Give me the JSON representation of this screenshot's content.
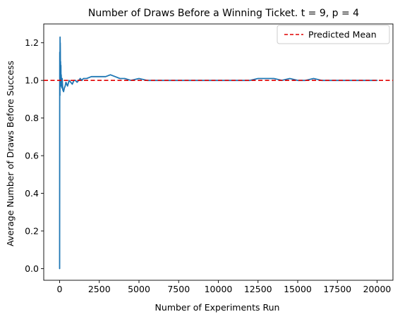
{
  "chart_data": {
    "type": "line",
    "title": "Number of Draws Before a Winning Ticket. t = 9, p = 4",
    "xlabel": "Number of Experiments Run",
    "ylabel": "Average Number of Draws Before Success",
    "xlim": [
      -1000,
      21000
    ],
    "ylim": [
      -0.062,
      1.3
    ],
    "x_ticks": [
      0,
      2500,
      5000,
      7500,
      10000,
      12500,
      15000,
      17500,
      20000
    ],
    "x_tick_labels": [
      "0",
      "2500",
      "5000",
      "7500",
      "10000",
      "12500",
      "15000",
      "17500",
      "20000"
    ],
    "y_ticks": [
      0.0,
      0.2,
      0.4,
      0.6,
      0.8,
      1.0,
      1.2
    ],
    "y_tick_labels": [
      "0.0",
      "0.2",
      "0.4",
      "0.6",
      "0.8",
      "1.0",
      "1.2"
    ],
    "grid": false,
    "legend_position": "top-right",
    "reference_lines": [
      {
        "name": "Predicted Mean",
        "y": 1.0,
        "style": "dashed",
        "color": "#e00000"
      }
    ],
    "series": [
      {
        "color": "#1f77b4",
        "x": [
          1,
          5,
          10,
          15,
          20,
          25,
          30,
          35,
          40,
          45,
          50,
          60,
          70,
          80,
          90,
          100,
          120,
          140,
          160,
          180,
          200,
          250,
          300,
          350,
          400,
          500,
          600,
          700,
          800,
          900,
          1000,
          1100,
          1200,
          1300,
          1400,
          1500,
          1700,
          2000,
          2300,
          2600,
          2900,
          3200,
          3500,
          3800,
          4100,
          4500,
          5000,
          5500,
          6000,
          6500,
          7000,
          7500,
          8000,
          8500,
          9000,
          9500,
          10000,
          10500,
          11000,
          11500,
          12000,
          12500,
          13000,
          13500,
          14000,
          14500,
          15000,
          15500,
          16000,
          16500,
          17000,
          17500,
          18000,
          18500,
          19000,
          19500,
          20000
        ],
        "values": [
          0.0,
          0.82,
          1.15,
          1.0,
          0.92,
          1.1,
          1.23,
          1.1,
          1.2,
          1.15,
          1.05,
          1.1,
          0.98,
          1.08,
          0.97,
          1.03,
          0.99,
          0.96,
          1.01,
          0.98,
          0.95,
          0.94,
          0.96,
          0.97,
          0.99,
          0.97,
          1.0,
          0.99,
          0.98,
          1.0,
          1.0,
          0.99,
          1.0,
          1.01,
          1.0,
          1.01,
          1.01,
          1.02,
          1.02,
          1.02,
          1.02,
          1.03,
          1.02,
          1.01,
          1.01,
          1.0,
          1.01,
          1.0,
          1.0,
          1.0,
          1.0,
          1.0,
          1.0,
          1.0,
          1.0,
          1.0,
          1.0,
          1.0,
          1.0,
          1.0,
          1.0,
          1.01,
          1.01,
          1.01,
          1.0,
          1.01,
          1.0,
          1.0,
          1.01,
          1.0,
          1.0,
          1.0,
          1.0,
          1.0,
          1.0,
          1.0,
          1.0
        ]
      }
    ]
  }
}
